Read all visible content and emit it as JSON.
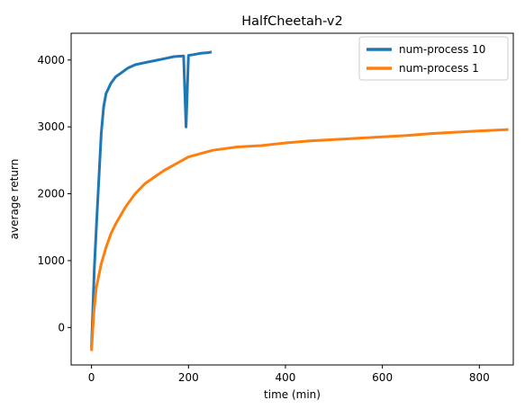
{
  "chart_data": {
    "type": "line",
    "title": "HalfCheetah-v2",
    "xlabel": "time (min)",
    "ylabel": "average return",
    "xlim": [
      -42,
      870
    ],
    "ylim": [
      -560,
      4400
    ],
    "xticks": [
      0,
      200,
      400,
      600,
      800
    ],
    "yticks": [
      0,
      1000,
      2000,
      3000,
      4000
    ],
    "xtick_labels": [
      "0",
      "200",
      "400",
      "600",
      "800"
    ],
    "ytick_labels": [
      "0",
      "1000",
      "2000",
      "3000",
      "4000"
    ],
    "grid": false,
    "legend_position": "top-right",
    "series": [
      {
        "name": "num-process 10",
        "color": "#1f77b4",
        "x": [
          0,
          3,
          6,
          10,
          15,
          20,
          25,
          30,
          40,
          50,
          60,
          75,
          90,
          110,
          130,
          150,
          170,
          190,
          195,
          200,
          210,
          225,
          240,
          248
        ],
        "y": [
          -300,
          300,
          900,
          1500,
          2200,
          2900,
          3300,
          3500,
          3650,
          3750,
          3800,
          3880,
          3930,
          3960,
          3990,
          4020,
          4050,
          4060,
          3000,
          4070,
          4080,
          4100,
          4110,
          4120
        ]
      },
      {
        "name": "num-process 1",
        "color": "#ff7f0e",
        "x": [
          0,
          5,
          10,
          20,
          30,
          40,
          50,
          70,
          90,
          110,
          130,
          150,
          175,
          200,
          250,
          300,
          350,
          400,
          450,
          500,
          550,
          600,
          650,
          700,
          750,
          800,
          860
        ],
        "y": [
          -350,
          250,
          600,
          950,
          1200,
          1400,
          1550,
          1800,
          2000,
          2150,
          2250,
          2350,
          2450,
          2550,
          2650,
          2700,
          2720,
          2760,
          2790,
          2810,
          2830,
          2850,
          2870,
          2900,
          2920,
          2940,
          2960
        ]
      }
    ]
  }
}
